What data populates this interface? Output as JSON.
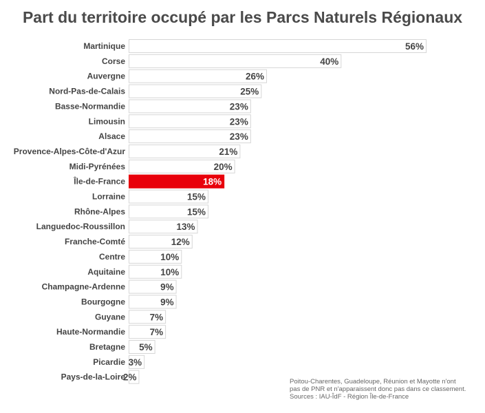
{
  "chart_data": {
    "type": "bar",
    "orientation": "horizontal",
    "title": "Part du territoire occupé par les Parcs Naturels Régionaux",
    "categories": [
      "Martinique",
      "Corse",
      "Auvergne",
      "Nord-Pas-de-Calais",
      "Basse-Normandie",
      "Limousin",
      "Alsace",
      "Provence-Alpes-Côte-d'Azur",
      "Midi-Pyrénées",
      "Île-de-France",
      "Lorraine",
      "Rhône-Alpes",
      "Languedoc-Roussillon",
      "Franche-Comté",
      "Centre",
      "Aquitaine",
      "Champagne-Ardenne",
      "Bourgogne",
      "Guyane",
      "Haute-Normandie",
      "Bretagne",
      "Picardie",
      "Pays-de-la-Loire"
    ],
    "values": [
      56,
      40,
      26,
      25,
      23,
      23,
      23,
      21,
      20,
      18,
      15,
      15,
      13,
      12,
      10,
      10,
      9,
      9,
      7,
      7,
      5,
      3,
      2
    ],
    "value_labels": [
      "56%",
      "40%",
      "26%",
      "25%",
      "23%",
      "23%",
      "23%",
      "21%",
      "20%",
      "18%",
      "15%",
      "15%",
      "13%",
      "12%",
      "10%",
      "10%",
      "9%",
      "9%",
      "7%",
      "7%",
      "5%",
      "3%",
      "2%"
    ],
    "highlight": "Île-de-France",
    "xlim": [
      0,
      56
    ],
    "grid": false,
    "colors": {
      "bar": "#ffffff",
      "bar_border": "#d6d6d6",
      "highlight": "#e8000b",
      "label": "#444444",
      "highlight_label": "#ffffff"
    }
  },
  "footnote": {
    "lines": [
      "Poitou-Charentes, Guadeloupe, Réunion et Mayotte n'ont",
      "pas de PNR et n'apparaissent donc pas dans ce classement.",
      "Sources : IAU-ÎdF - Région Île-de-France"
    ]
  }
}
